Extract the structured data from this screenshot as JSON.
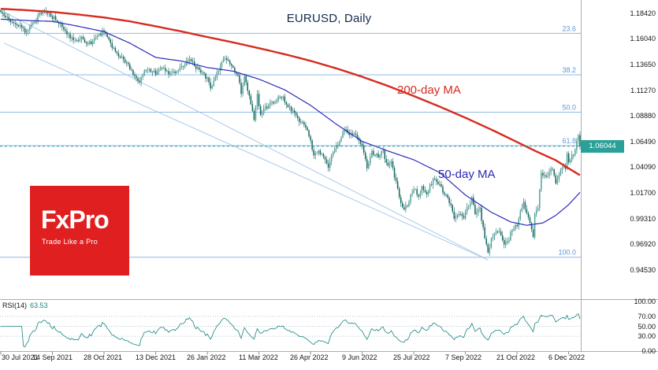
{
  "meta": {
    "app": "price chart screenshot"
  },
  "branding": {
    "logo_text": "FxPro",
    "tagline": "Trade Like a Pro",
    "logo_bg": "#e02020"
  },
  "annotations": {
    "ma200_label": "200-day MA",
    "ma50_label": "50-day MA"
  },
  "price_axis": {
    "labels": [
      "1.18420",
      "1.16040",
      "1.13650",
      "1.11270",
      "1.08880",
      "1.06490",
      "1.04090",
      "1.01700",
      "0.99310",
      "0.96920",
      "0.94530"
    ],
    "values": [
      1.1842,
      1.1604,
      1.1365,
      1.1127,
      1.0888,
      1.0649,
      1.0409,
      1.017,
      0.9931,
      0.9692,
      0.9453
    ],
    "current_label": "1.06044",
    "current_value": 1.06044,
    "ylim": [
      0.918,
      1.1967
    ]
  },
  "x_axis": {
    "labels": [
      "30 Jul 2021",
      "14 Sep 2021",
      "28 Oct 2021",
      "13 Dec 2021",
      "26 Jan 2022",
      "11 Mar 2022",
      "26 Apr 2022",
      "9 Jun 2022",
      "25 Jul 2022",
      "7 Sep 2022",
      "21 Oct 2022",
      "6 Dec 2022"
    ],
    "tick_days": [
      0,
      32,
      64,
      96,
      128,
      160,
      192,
      224,
      256,
      288,
      320,
      352
    ],
    "days_total": 360
  },
  "rsi_panel": {
    "label": "RSI(14)",
    "value": "63.53",
    "period": 14,
    "guides": [
      70,
      50,
      30
    ],
    "axis_labels": [
      "100.00",
      "70.00",
      "50.00",
      "30.00",
      "0.00"
    ],
    "axis_values": [
      100,
      70,
      50,
      30,
      0
    ],
    "ylim": [
      0,
      100
    ]
  },
  "chart_data": {
    "type": "candlestick",
    "title": "EURUSD, Daily",
    "symbol": "EURUSD",
    "timeframe": "Daily",
    "legend_position": "none",
    "grid": false,
    "ylim": [
      0.918,
      1.1967
    ],
    "last_price": 1.06044,
    "series": {
      "close_anchors": [
        [
          0,
          1.187
        ],
        [
          6,
          1.1755
        ],
        [
          12,
          1.173
        ],
        [
          15,
          1.1664
        ],
        [
          22,
          1.179
        ],
        [
          27,
          1.1878
        ],
        [
          32,
          1.181
        ],
        [
          38,
          1.1725
        ],
        [
          45,
          1.159
        ],
        [
          50,
          1.1605
        ],
        [
          54,
          1.155
        ],
        [
          59,
          1.1615
        ],
        [
          64,
          1.168
        ],
        [
          68,
          1.1555
        ],
        [
          74,
          1.1435
        ],
        [
          80,
          1.134
        ],
        [
          86,
          1.1195
        ],
        [
          89,
          1.132
        ],
        [
          96,
          1.1286
        ],
        [
          101,
          1.1335
        ],
        [
          105,
          1.1275
        ],
        [
          111,
          1.132
        ],
        [
          117,
          1.1415
        ],
        [
          123,
          1.1305
        ],
        [
          128,
          1.124
        ],
        [
          130,
          1.114
        ],
        [
          134,
          1.128
        ],
        [
          138,
          1.143
        ],
        [
          143,
          1.135
        ],
        [
          147,
          1.125
        ],
        [
          149,
          1.1106
        ],
        [
          151,
          1.127
        ],
        [
          155,
          1.1
        ],
        [
          157,
          1.0854
        ],
        [
          159,
          1.1076
        ],
        [
          161,
          1.091
        ],
        [
          164,
          1.096
        ],
        [
          168,
          1.101
        ],
        [
          174,
          1.1067
        ],
        [
          178,
          1.099
        ],
        [
          182,
          1.09
        ],
        [
          186,
          1.083
        ],
        [
          189,
          1.078
        ],
        [
          192,
          1.064
        ],
        [
          194,
          1.051
        ],
        [
          197,
          1.055
        ],
        [
          200,
          1.052
        ],
        [
          203,
          1.0412
        ],
        [
          206,
          1.056
        ],
        [
          210,
          1.065
        ],
        [
          213,
          1.078
        ],
        [
          216,
          1.07
        ],
        [
          220,
          1.072
        ],
        [
          224,
          1.062
        ],
        [
          227,
          1.041
        ],
        [
          230,
          1.055
        ],
        [
          234,
          1.052
        ],
        [
          237,
          1.056
        ],
        [
          239,
          1.044
        ],
        [
          242,
          1.045
        ],
        [
          245,
          1.0265
        ],
        [
          248,
          1.008
        ],
        [
          250,
          1.0018
        ],
        [
          253,
          1.0089
        ],
        [
          255,
          1.018
        ],
        [
          256,
          1.022
        ],
        [
          259,
          1.012
        ],
        [
          261,
          1.022
        ],
        [
          264,
          1.016
        ],
        [
          268,
          1.0298
        ],
        [
          272,
          1.026
        ],
        [
          275,
          1.016
        ],
        [
          278,
          1.009
        ],
        [
          281,
          0.9941
        ],
        [
          284,
          0.999
        ],
        [
          287,
          0.995
        ],
        [
          288,
          0.9998
        ],
        [
          292,
          1.012
        ],
        [
          294,
          0.997
        ],
        [
          297,
          1.0016
        ],
        [
          299,
          0.9838
        ],
        [
          301,
          0.969
        ],
        [
          302,
          0.961
        ],
        [
          304,
          0.9735
        ],
        [
          306,
          0.9802
        ],
        [
          309,
          0.982
        ],
        [
          312,
          0.9705
        ],
        [
          314,
          0.97
        ],
        [
          317,
          0.984
        ],
        [
          320,
          0.986
        ],
        [
          322,
          1.0
        ],
        [
          324,
          1.0083
        ],
        [
          326,
          0.9965
        ],
        [
          328,
          0.988
        ],
        [
          330,
          0.9749
        ],
        [
          331,
          0.9957
        ],
        [
          333,
          1.002
        ],
        [
          335,
          1.035
        ],
        [
          337,
          1.0325
        ],
        [
          339,
          1.035
        ],
        [
          342,
          1.039
        ],
        [
          344,
          1.024
        ],
        [
          346,
          1.033
        ],
        [
          348,
          1.04
        ],
        [
          350,
          1.041
        ],
        [
          351,
          1.0526
        ],
        [
          352,
          1.0468
        ],
        [
          354,
          1.051
        ],
        [
          356,
          1.0565
        ],
        [
          357,
          1.064
        ],
        [
          358,
          1.069
        ],
        [
          359,
          1.06044
        ]
      ],
      "ma200_anchors": [
        [
          0,
          1.1885
        ],
        [
          16,
          1.1872
        ],
        [
          32,
          1.1856
        ],
        [
          48,
          1.1832
        ],
        [
          64,
          1.1804
        ],
        [
          80,
          1.1768
        ],
        [
          96,
          1.1722
        ],
        [
          112,
          1.1674
        ],
        [
          128,
          1.1622
        ],
        [
          144,
          1.1572
        ],
        [
          160,
          1.1518
        ],
        [
          176,
          1.1462
        ],
        [
          192,
          1.14
        ],
        [
          208,
          1.133
        ],
        [
          224,
          1.1252
        ],
        [
          240,
          1.1166
        ],
        [
          256,
          1.1072
        ],
        [
          272,
          1.0974
        ],
        [
          288,
          1.087
        ],
        [
          304,
          1.076
        ],
        [
          320,
          1.0644
        ],
        [
          332,
          1.0556
        ],
        [
          344,
          1.0474
        ],
        [
          352,
          1.0398
        ],
        [
          359,
          1.0335
        ]
      ],
      "ma50_anchors": [
        [
          0,
          1.1788
        ],
        [
          16,
          1.1776
        ],
        [
          32,
          1.1768
        ],
        [
          48,
          1.1722
        ],
        [
          64,
          1.1672
        ],
        [
          80,
          1.1565
        ],
        [
          96,
          1.1432
        ],
        [
          112,
          1.1398
        ],
        [
          128,
          1.1338
        ],
        [
          144,
          1.1304
        ],
        [
          160,
          1.123
        ],
        [
          176,
          1.113
        ],
        [
          192,
          1.0986
        ],
        [
          208,
          1.081
        ],
        [
          224,
          1.065
        ],
        [
          240,
          1.056
        ],
        [
          256,
          1.0478
        ],
        [
          272,
          1.036
        ],
        [
          288,
          1.015
        ],
        [
          304,
          0.999
        ],
        [
          316,
          0.99
        ],
        [
          326,
          0.9868
        ],
        [
          336,
          0.989
        ],
        [
          344,
          0.996
        ],
        [
          352,
          1.006
        ],
        [
          359,
          1.0175
        ]
      ]
    },
    "fib_levels": [
      {
        "label": "23.6",
        "price": 1.1656
      },
      {
        "label": "38.2",
        "price": 1.127
      },
      {
        "label": "50.0",
        "price": 1.0922
      },
      {
        "label": "61.8",
        "price": 1.061
      },
      {
        "label": "100.0",
        "price": 0.9571
      }
    ],
    "trendlines": [
      {
        "from": [
          2,
          1.1855
        ],
        "to": [
          302,
          0.9545
        ]
      },
      {
        "from": [
          2,
          1.1565
        ],
        "to": [
          302,
          0.9545
        ]
      }
    ],
    "colors": {
      "candle_up": "#4fa39a",
      "candle_down": "#11655e",
      "wick": "#11655e",
      "ma200": "#d62b1f",
      "ma50": "#2b2bb8",
      "fib": "#8fb8e5",
      "fib_text": "#5f97d6",
      "trendline": "#a9c9ec",
      "tag_bg": "#2aa198",
      "rsi_line": "#16857d",
      "rsi_guide": "#9fb6c6",
      "separator": "#adadad",
      "tick": "#8a8a8a"
    }
  }
}
